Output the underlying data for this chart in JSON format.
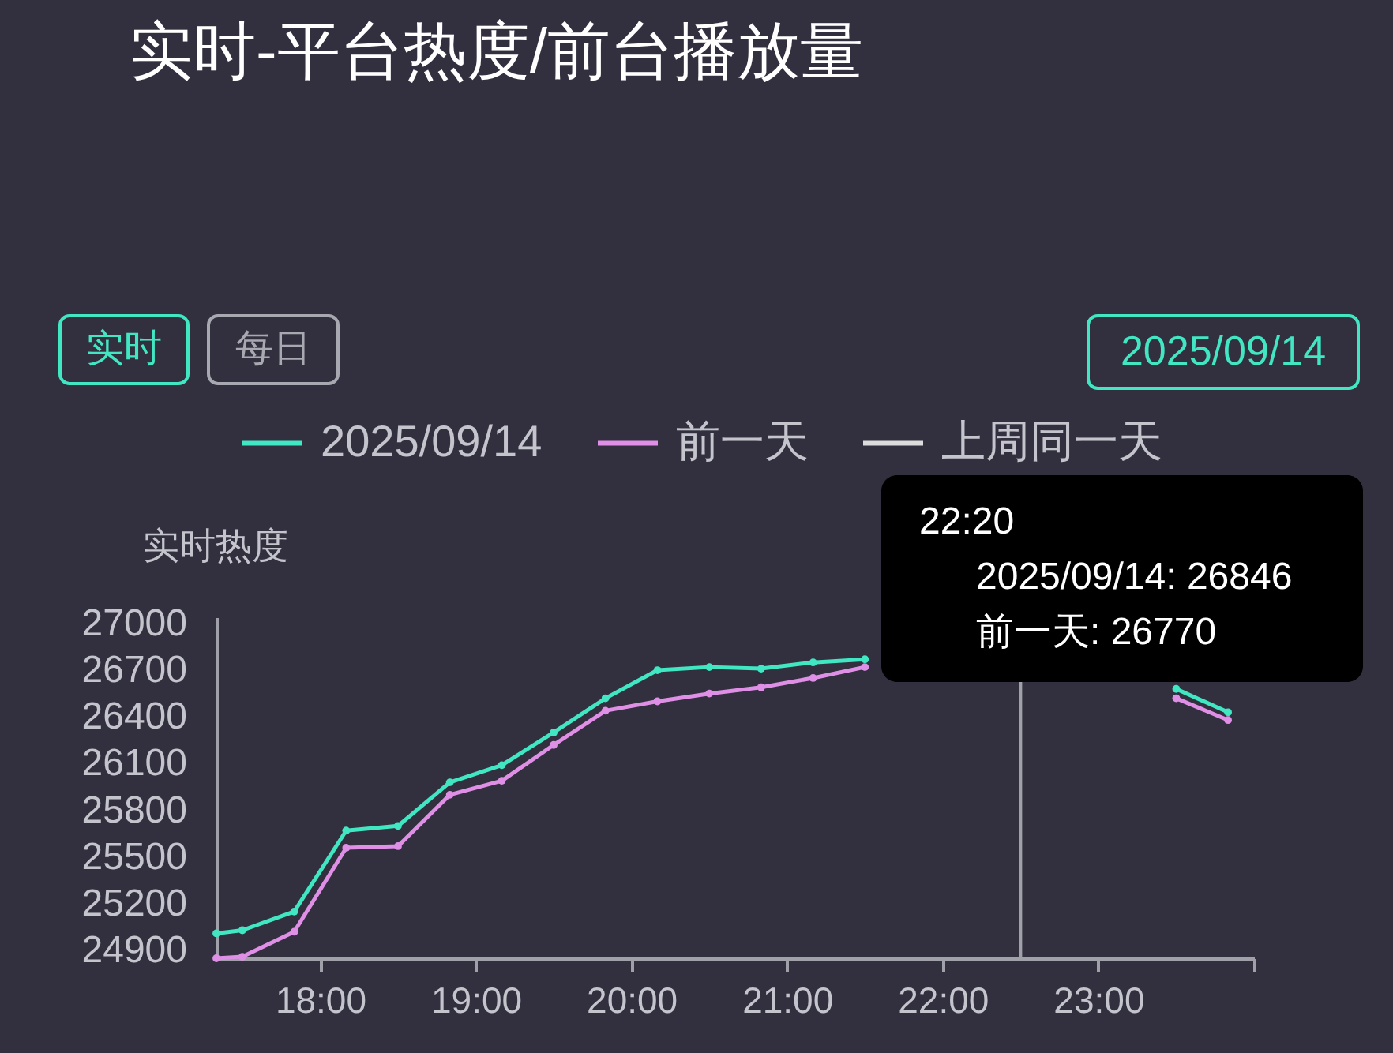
{
  "chart_data": {
    "type": "line",
    "title": "实时-平台热度/前台播放量",
    "ylabel": "实时热度",
    "x": [
      17.333,
      17.5,
      17.833,
      18.167,
      18.5,
      18.833,
      19.167,
      19.5,
      19.833,
      20.167,
      20.5,
      20.833,
      21.167,
      21.5,
      21.833,
      22.167,
      22.5,
      22.833,
      23.167,
      23.5,
      23.833
    ],
    "series": [
      {
        "name": "2025/09/14",
        "color": "#41e6c2",
        "values": [
          25010,
          25030,
          25150,
          25670,
          25700,
          25980,
          26090,
          26300,
          26520,
          26700,
          26720,
          26710,
          26750,
          26770,
          null,
          null,
          null,
          null,
          null,
          26580,
          26430
        ]
      },
      {
        "name": "前一天",
        "color": "#df8fe6",
        "values": [
          24850,
          24860,
          25020,
          25560,
          25570,
          25900,
          25990,
          26220,
          26440,
          26500,
          26550,
          26590,
          26650,
          26720,
          null,
          null,
          null,
          null,
          null,
          26520,
          26380
        ]
      },
      {
        "name": "上周同一天",
        "color": "#dcdcdc",
        "values": [
          null,
          null,
          null,
          null,
          null,
          null,
          null,
          null,
          null,
          null,
          null,
          null,
          null,
          null,
          null,
          null,
          null,
          null,
          null,
          null,
          null
        ]
      }
    ],
    "xlim": [
      17.333,
      24
    ],
    "xticks": [
      {
        "value": 18,
        "label": "18:00"
      },
      {
        "value": 19,
        "label": "19:00"
      },
      {
        "value": 20,
        "label": "20:00"
      },
      {
        "value": 21,
        "label": "21:00"
      },
      {
        "value": 22,
        "label": "22:00"
      },
      {
        "value": 23,
        "label": "23:00"
      },
      {
        "value": 24,
        "label": null
      }
    ],
    "ylim": [
      24850,
      27040
    ],
    "yticks": [
      24900,
      25200,
      25500,
      25800,
      26100,
      26400,
      26700,
      27000
    ],
    "grid": false,
    "legend": "top",
    "marker": "circle",
    "line_style": "solid",
    "ref_lines": [
      {
        "axis": "x",
        "value": 22.5,
        "color": "#a0a0a8"
      }
    ],
    "annotations": [
      "实时",
      "每日",
      "2025/09/14",
      "22:20",
      "2025/09/14: 26846",
      "前一天: 26770"
    ]
  }
}
